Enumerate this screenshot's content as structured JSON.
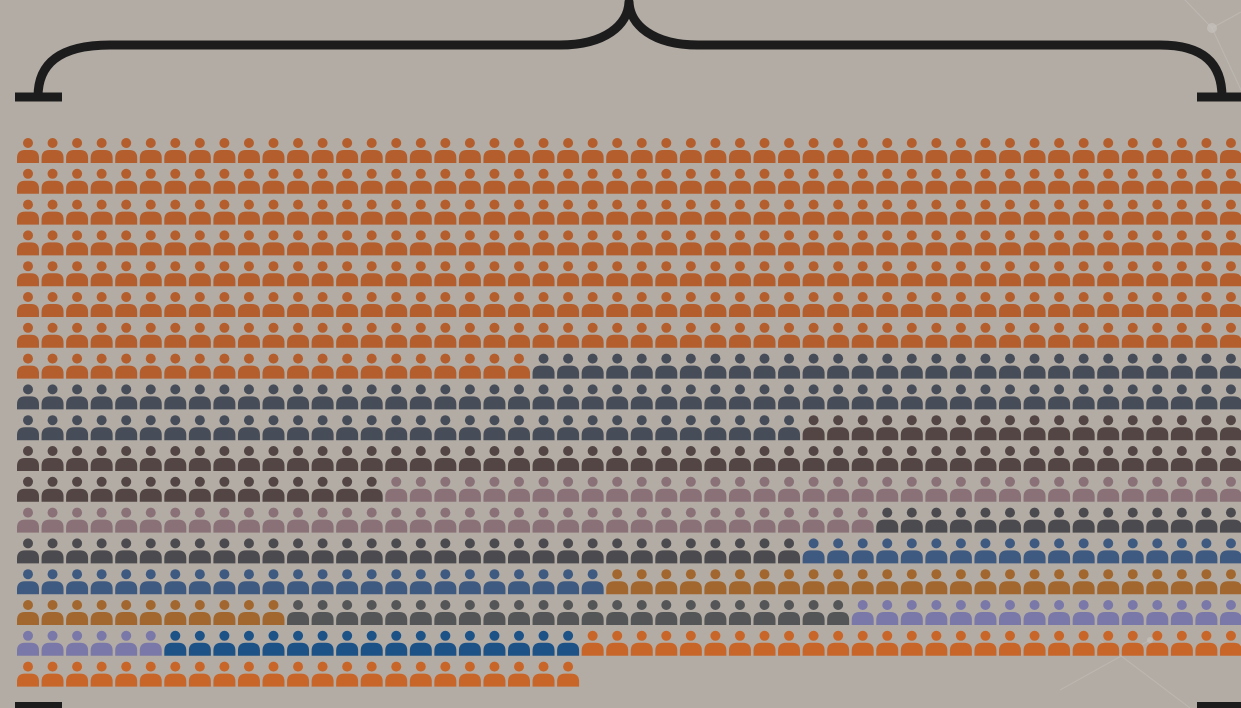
{
  "chart_data": {
    "type": "waffle",
    "title": "",
    "unit_icon": "person-icon",
    "columns": 50,
    "total_icons": 873,
    "series": [
      {
        "color": "#b35e2c",
        "count": 371
      },
      {
        "color": "#474d58",
        "count": 111
      },
      {
        "color": "#524543",
        "count": 83
      },
      {
        "color": "#8a7178",
        "count": 70
      },
      {
        "color": "#4b4a4e",
        "count": 47
      },
      {
        "color": "#3f5a80",
        "count": 42
      },
      {
        "color": "#a2672e",
        "count": 37
      },
      {
        "color": "#545556",
        "count": 23
      },
      {
        "color": "#7a78a8",
        "count": 22
      },
      {
        "color": "#1d5287",
        "count": 17
      },
      {
        "color": "#c8662a",
        "count": 50
      }
    ]
  }
}
